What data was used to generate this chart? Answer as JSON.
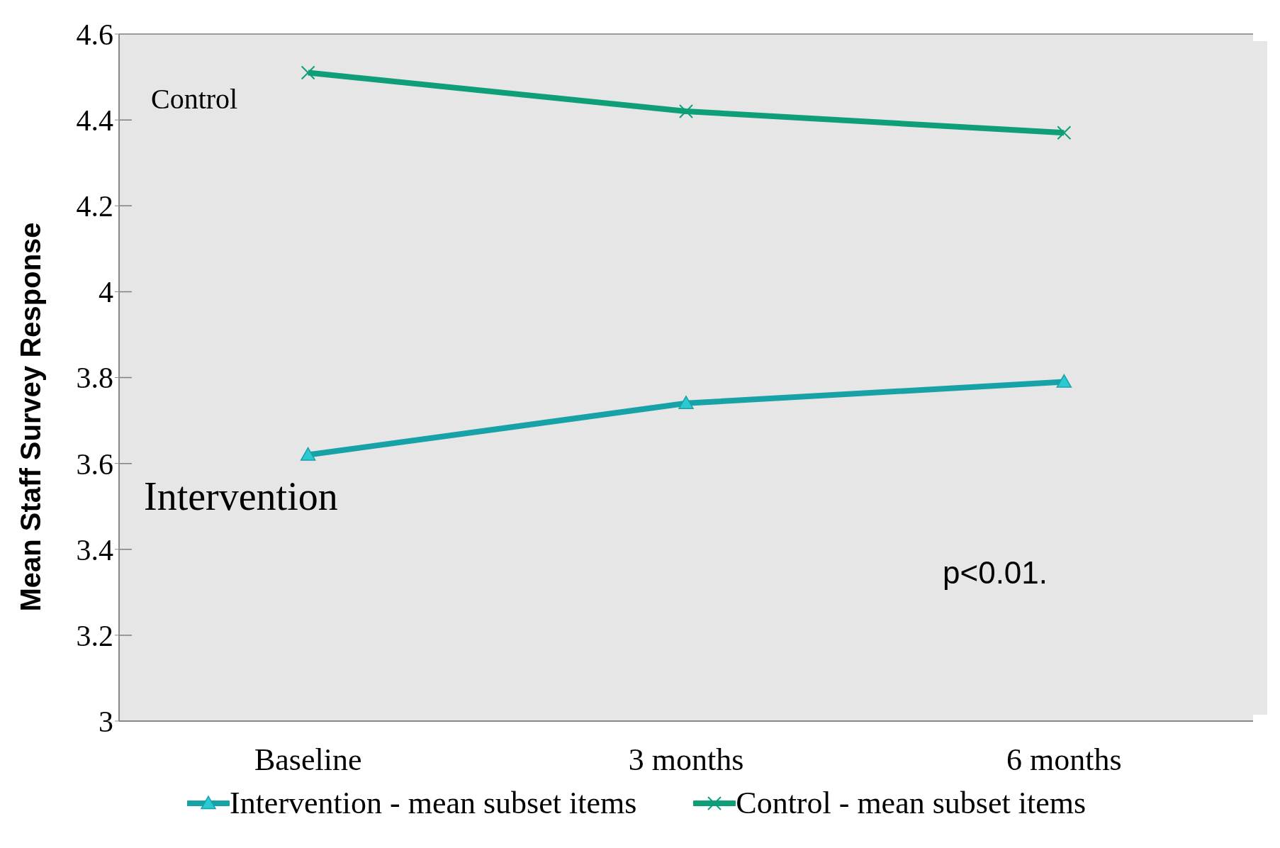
{
  "chart_data": {
    "type": "line",
    "ylabel": "Mean Staff Survey Response",
    "categories": [
      "Baseline",
      "3 months",
      "6 months"
    ],
    "series": [
      {
        "name": "Intervention - mean subset items",
        "color": "#17a2a8",
        "marker": "triangle",
        "values": [
          3.62,
          3.74,
          3.79
        ]
      },
      {
        "name": "Control - mean subset items",
        "color": "#0e9e78",
        "marker": "cross",
        "values": [
          4.51,
          4.42,
          4.37
        ]
      }
    ],
    "ylim": [
      3,
      4.6
    ],
    "yticks": [
      3,
      3.2,
      3.4,
      3.6,
      3.8,
      4,
      4.2,
      4.4,
      4.6
    ],
    "grid": "y",
    "legend": "bottom",
    "annotations": [
      "Control",
      "Intervention",
      "p<0.01."
    ]
  }
}
